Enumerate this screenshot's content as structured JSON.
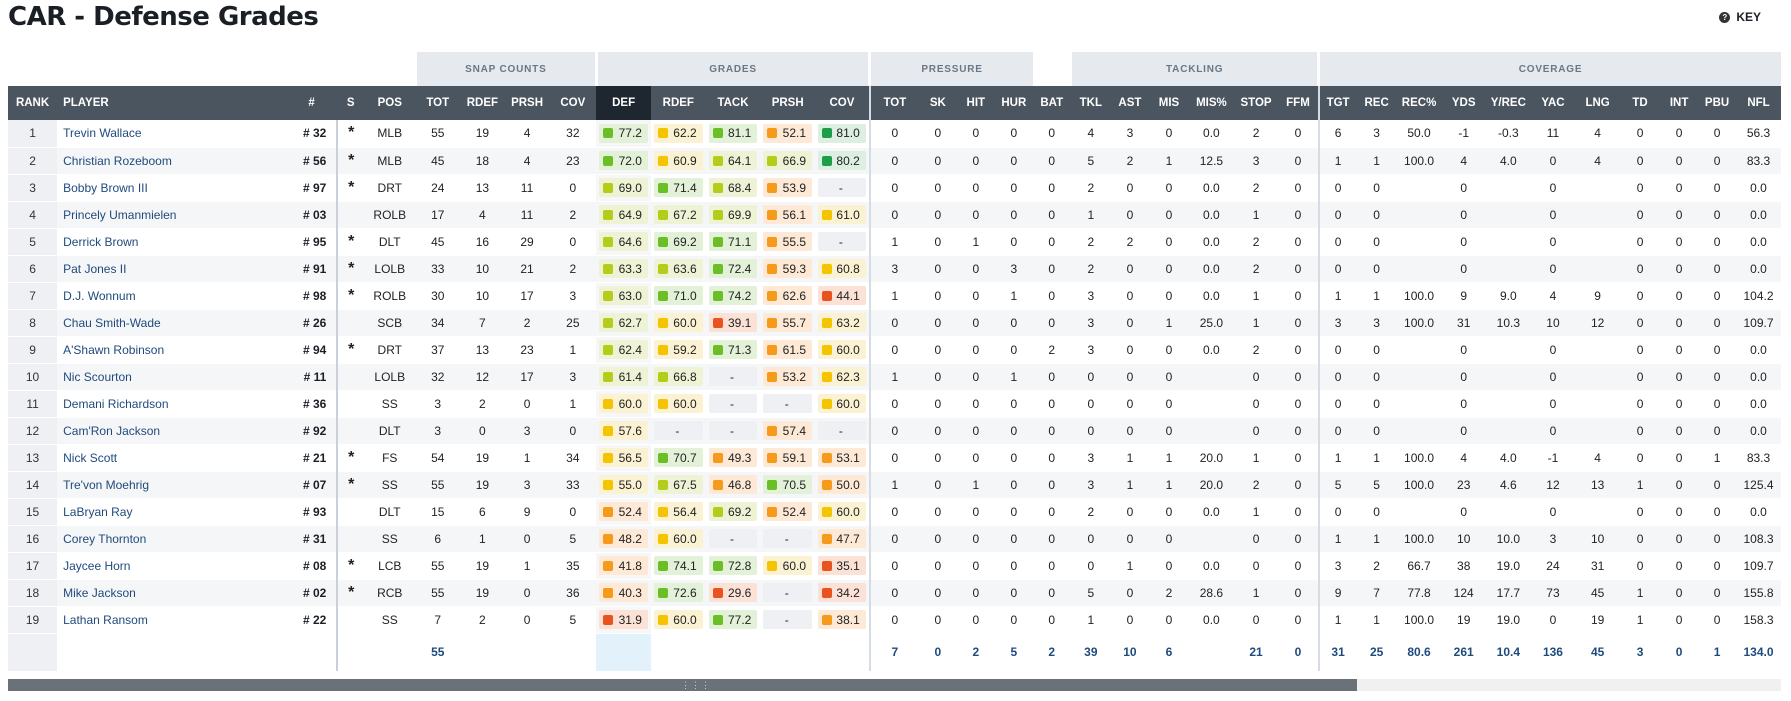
{
  "page": {
    "title": "CAR - Defense Grades",
    "key_label": "KEY"
  },
  "groups": {
    "snap_counts": "SNAP COUNTS",
    "grades": "GRADES",
    "pressure": "PRESSURE",
    "tackling": "TACKLING",
    "coverage": "COVERAGE"
  },
  "headers": [
    "RANK",
    "PLAYER",
    "#",
    "S",
    "POS",
    "TOT",
    "RDEF",
    "PRSH",
    "COV",
    "DEF",
    "RDEF",
    "TACK",
    "PRSH",
    "COV",
    "TOT",
    "SK",
    "HIT",
    "HUR",
    "BAT",
    "TKL",
    "AST",
    "MIS",
    "MIS%",
    "STOP",
    "FFM",
    "TGT",
    "REC",
    "REC%",
    "YDS",
    "Y/REC",
    "YAC",
    "LNG",
    "TD",
    "INT",
    "PBU",
    "NFL"
  ],
  "grade_colors": {
    "darkgreen": "#1f9e4a",
    "green": "#6abf26",
    "lime": "#b6cc1a",
    "yellow": "#f5c400",
    "orange": "#f59a1a",
    "red": "#e8531f"
  },
  "rows": [
    [
      "1",
      "Trevin Wallace",
      "# 32",
      "*",
      "MLB",
      "55",
      "19",
      "4",
      "32",
      [
        "77.2",
        "green"
      ],
      [
        "62.2",
        "yellow"
      ],
      [
        "81.1",
        "green"
      ],
      [
        "52.1",
        "orange"
      ],
      [
        "81.0",
        "darkgreen"
      ],
      "0",
      "0",
      "0",
      "0",
      "0",
      "4",
      "3",
      "0",
      "0.0",
      "2",
      "0",
      "6",
      "3",
      "50.0",
      "-1",
      "-0.3",
      "11",
      "4",
      "0",
      "0",
      "0",
      "56.3"
    ],
    [
      "2",
      "Christian Rozeboom",
      "# 56",
      "*",
      "MLB",
      "45",
      "18",
      "4",
      "23",
      [
        "72.0",
        "green"
      ],
      [
        "60.9",
        "yellow"
      ],
      [
        "64.1",
        "lime"
      ],
      [
        "66.9",
        "lime"
      ],
      [
        "80.2",
        "darkgreen"
      ],
      "0",
      "0",
      "0",
      "0",
      "0",
      "5",
      "2",
      "1",
      "12.5",
      "3",
      "0",
      "1",
      "1",
      "100.0",
      "4",
      "4.0",
      "0",
      "4",
      "0",
      "0",
      "0",
      "83.3"
    ],
    [
      "3",
      "Bobby Brown III",
      "# 97",
      "*",
      "DRT",
      "24",
      "13",
      "11",
      "0",
      [
        "69.0",
        "lime"
      ],
      [
        "71.4",
        "green"
      ],
      [
        "68.4",
        "lime"
      ],
      [
        "53.9",
        "orange"
      ],
      [
        "-",
        "dash"
      ],
      "0",
      "0",
      "0",
      "0",
      "0",
      "2",
      "0",
      "0",
      "0.0",
      "2",
      "0",
      "0",
      "0",
      "",
      "0",
      "",
      "0",
      "",
      "0",
      "0",
      "0",
      "0.0"
    ],
    [
      "4",
      "Princely Umanmielen",
      "# 03",
      "",
      "ROLB",
      "17",
      "4",
      "11",
      "2",
      [
        "64.9",
        "lime"
      ],
      [
        "67.2",
        "lime"
      ],
      [
        "69.9",
        "lime"
      ],
      [
        "56.1",
        "orange"
      ],
      [
        "61.0",
        "yellow"
      ],
      "0",
      "0",
      "0",
      "0",
      "0",
      "1",
      "0",
      "0",
      "0.0",
      "1",
      "0",
      "0",
      "0",
      "",
      "0",
      "",
      "0",
      "",
      "0",
      "0",
      "0",
      "0.0"
    ],
    [
      "5",
      "Derrick Brown",
      "# 95",
      "*",
      "DLT",
      "45",
      "16",
      "29",
      "0",
      [
        "64.6",
        "lime"
      ],
      [
        "69.2",
        "green"
      ],
      [
        "71.1",
        "green"
      ],
      [
        "55.5",
        "orange"
      ],
      [
        "-",
        "dash"
      ],
      "1",
      "0",
      "1",
      "0",
      "0",
      "2",
      "2",
      "0",
      "0.0",
      "2",
      "0",
      "0",
      "0",
      "",
      "0",
      "",
      "0",
      "",
      "0",
      "0",
      "0",
      "0.0"
    ],
    [
      "6",
      "Pat Jones II",
      "# 91",
      "*",
      "LOLB",
      "33",
      "10",
      "21",
      "2",
      [
        "63.3",
        "lime"
      ],
      [
        "63.6",
        "lime"
      ],
      [
        "72.4",
        "green"
      ],
      [
        "59.3",
        "orange"
      ],
      [
        "60.8",
        "yellow"
      ],
      "3",
      "0",
      "0",
      "3",
      "0",
      "2",
      "0",
      "0",
      "0.0",
      "2",
      "0",
      "0",
      "0",
      "",
      "0",
      "",
      "0",
      "",
      "0",
      "0",
      "0",
      "0.0"
    ],
    [
      "7",
      "D.J. Wonnum",
      "# 98",
      "*",
      "ROLB",
      "30",
      "10",
      "17",
      "3",
      [
        "63.0",
        "lime"
      ],
      [
        "71.0",
        "green"
      ],
      [
        "74.2",
        "green"
      ],
      [
        "62.6",
        "orange"
      ],
      [
        "44.1",
        "red"
      ],
      "1",
      "0",
      "0",
      "1",
      "0",
      "3",
      "0",
      "0",
      "0.0",
      "1",
      "0",
      "1",
      "1",
      "100.0",
      "9",
      "9.0",
      "4",
      "9",
      "0",
      "0",
      "0",
      "104.2"
    ],
    [
      "8",
      "Chau Smith-Wade",
      "# 26",
      "",
      "SCB",
      "34",
      "7",
      "2",
      "25",
      [
        "62.7",
        "lime"
      ],
      [
        "60.0",
        "yellow"
      ],
      [
        "39.1",
        "red"
      ],
      [
        "55.7",
        "orange"
      ],
      [
        "63.2",
        "yellow"
      ],
      "0",
      "0",
      "0",
      "0",
      "0",
      "3",
      "0",
      "1",
      "25.0",
      "1",
      "0",
      "3",
      "3",
      "100.0",
      "31",
      "10.3",
      "10",
      "12",
      "0",
      "0",
      "0",
      "109.7"
    ],
    [
      "9",
      "A'Shawn Robinson",
      "# 94",
      "*",
      "DRT",
      "37",
      "13",
      "23",
      "1",
      [
        "62.4",
        "lime"
      ],
      [
        "59.2",
        "yellow"
      ],
      [
        "71.3",
        "green"
      ],
      [
        "61.5",
        "orange"
      ],
      [
        "60.0",
        "yellow"
      ],
      "0",
      "0",
      "0",
      "0",
      "2",
      "3",
      "0",
      "0",
      "0.0",
      "2",
      "0",
      "0",
      "0",
      "",
      "0",
      "",
      "0",
      "",
      "0",
      "0",
      "0",
      "0.0"
    ],
    [
      "10",
      "Nic Scourton",
      "# 11",
      "",
      "LOLB",
      "32",
      "12",
      "17",
      "3",
      [
        "61.4",
        "lime"
      ],
      [
        "66.8",
        "lime"
      ],
      [
        "-",
        "dash"
      ],
      [
        "53.2",
        "orange"
      ],
      [
        "62.3",
        "yellow"
      ],
      "1",
      "0",
      "0",
      "1",
      "0",
      "0",
      "0",
      "0",
      "",
      "0",
      "0",
      "0",
      "0",
      "",
      "0",
      "",
      "0",
      "",
      "0",
      "0",
      "0",
      "0.0"
    ],
    [
      "11",
      "Demani Richardson",
      "# 36",
      "",
      "SS",
      "3",
      "2",
      "0",
      "1",
      [
        "60.0",
        "yellow"
      ],
      [
        "60.0",
        "yellow"
      ],
      [
        "-",
        "dash"
      ],
      [
        "-",
        "dash"
      ],
      [
        "60.0",
        "yellow"
      ],
      "0",
      "0",
      "0",
      "0",
      "0",
      "0",
      "0",
      "0",
      "",
      "0",
      "0",
      "0",
      "0",
      "",
      "0",
      "",
      "0",
      "",
      "0",
      "0",
      "0",
      "0.0"
    ],
    [
      "12",
      "Cam'Ron Jackson",
      "# 92",
      "",
      "DLT",
      "3",
      "0",
      "3",
      "0",
      [
        "57.6",
        "yellow"
      ],
      [
        "-",
        "dash"
      ],
      [
        "-",
        "dash"
      ],
      [
        "57.4",
        "orange"
      ],
      [
        "-",
        "dash"
      ],
      "0",
      "0",
      "0",
      "0",
      "0",
      "0",
      "0",
      "0",
      "",
      "0",
      "0",
      "0",
      "0",
      "",
      "0",
      "",
      "0",
      "",
      "0",
      "0",
      "0",
      "0.0"
    ],
    [
      "13",
      "Nick Scott",
      "# 21",
      "*",
      "FS",
      "54",
      "19",
      "1",
      "34",
      [
        "56.5",
        "yellow"
      ],
      [
        "70.7",
        "green"
      ],
      [
        "49.3",
        "orange"
      ],
      [
        "59.1",
        "orange"
      ],
      [
        "53.1",
        "orange"
      ],
      "0",
      "0",
      "0",
      "0",
      "0",
      "3",
      "1",
      "1",
      "20.0",
      "1",
      "0",
      "1",
      "1",
      "100.0",
      "4",
      "4.0",
      "-1",
      "4",
      "0",
      "0",
      "1",
      "83.3"
    ],
    [
      "14",
      "Tre'von Moehrig",
      "# 07",
      "*",
      "SS",
      "55",
      "19",
      "3",
      "33",
      [
        "55.0",
        "yellow"
      ],
      [
        "67.5",
        "lime"
      ],
      [
        "46.8",
        "orange"
      ],
      [
        "70.5",
        "green"
      ],
      [
        "50.0",
        "orange"
      ],
      "1",
      "0",
      "1",
      "0",
      "0",
      "3",
      "1",
      "1",
      "20.0",
      "2",
      "0",
      "5",
      "5",
      "100.0",
      "23",
      "4.6",
      "12",
      "13",
      "1",
      "0",
      "0",
      "125.4"
    ],
    [
      "15",
      "LaBryan Ray",
      "# 93",
      "",
      "DLT",
      "15",
      "6",
      "9",
      "0",
      [
        "52.4",
        "orange"
      ],
      [
        "56.4",
        "yellow"
      ],
      [
        "69.2",
        "lime"
      ],
      [
        "52.4",
        "orange"
      ],
      [
        "60.0",
        "yellow"
      ],
      "0",
      "0",
      "0",
      "0",
      "0",
      "2",
      "0",
      "0",
      "0.0",
      "1",
      "0",
      "0",
      "0",
      "",
      "0",
      "",
      "0",
      "",
      "0",
      "0",
      "0",
      "0.0"
    ],
    [
      "16",
      "Corey Thornton",
      "# 31",
      "",
      "SS",
      "6",
      "1",
      "0",
      "5",
      [
        "48.2",
        "orange"
      ],
      [
        "60.0",
        "yellow"
      ],
      [
        "-",
        "dash"
      ],
      [
        "-",
        "dash"
      ],
      [
        "47.7",
        "orange"
      ],
      "0",
      "0",
      "0",
      "0",
      "0",
      "0",
      "0",
      "0",
      "",
      "0",
      "0",
      "1",
      "1",
      "100.0",
      "10",
      "10.0",
      "3",
      "10",
      "0",
      "0",
      "0",
      "108.3"
    ],
    [
      "17",
      "Jaycee Horn",
      "# 08",
      "*",
      "LCB",
      "55",
      "19",
      "1",
      "35",
      [
        "41.8",
        "orange"
      ],
      [
        "74.1",
        "green"
      ],
      [
        "72.8",
        "green"
      ],
      [
        "60.0",
        "yellow"
      ],
      [
        "35.1",
        "red"
      ],
      "0",
      "0",
      "0",
      "0",
      "0",
      "0",
      "1",
      "0",
      "0.0",
      "0",
      "0",
      "3",
      "2",
      "66.7",
      "38",
      "19.0",
      "24",
      "31",
      "0",
      "0",
      "0",
      "109.7"
    ],
    [
      "18",
      "Mike Jackson",
      "# 02",
      "*",
      "RCB",
      "55",
      "19",
      "0",
      "36",
      [
        "40.3",
        "orange"
      ],
      [
        "72.6",
        "green"
      ],
      [
        "29.6",
        "red"
      ],
      [
        "-",
        "dash"
      ],
      [
        "34.2",
        "red"
      ],
      "0",
      "0",
      "0",
      "0",
      "0",
      "5",
      "0",
      "2",
      "28.6",
      "1",
      "0",
      "9",
      "7",
      "77.8",
      "124",
      "17.7",
      "73",
      "45",
      "1",
      "0",
      "0",
      "155.8"
    ],
    [
      "19",
      "Lathan Ransom",
      "# 22",
      "",
      "SS",
      "7",
      "2",
      "0",
      "5",
      [
        "31.9",
        "red"
      ],
      [
        "60.0",
        "yellow"
      ],
      [
        "77.2",
        "green"
      ],
      [
        "-",
        "dash"
      ],
      [
        "38.1",
        "orange"
      ],
      "0",
      "0",
      "0",
      "0",
      "0",
      "1",
      "0",
      "0",
      "0.0",
      "0",
      "0",
      "1",
      "1",
      "100.0",
      "19",
      "19.0",
      "0",
      "19",
      "1",
      "0",
      "0",
      "158.3"
    ]
  ],
  "totals": [
    "",
    "",
    "",
    "",
    "",
    "55",
    "",
    "",
    "",
    "",
    "",
    "",
    "",
    "",
    "7",
    "0",
    "2",
    "5",
    "2",
    "39",
    "10",
    "6",
    "",
    "21",
    "0",
    "31",
    "25",
    "80.6",
    "261",
    "10.4",
    "136",
    "45",
    "3",
    "0",
    "1",
    "134.0"
  ]
}
